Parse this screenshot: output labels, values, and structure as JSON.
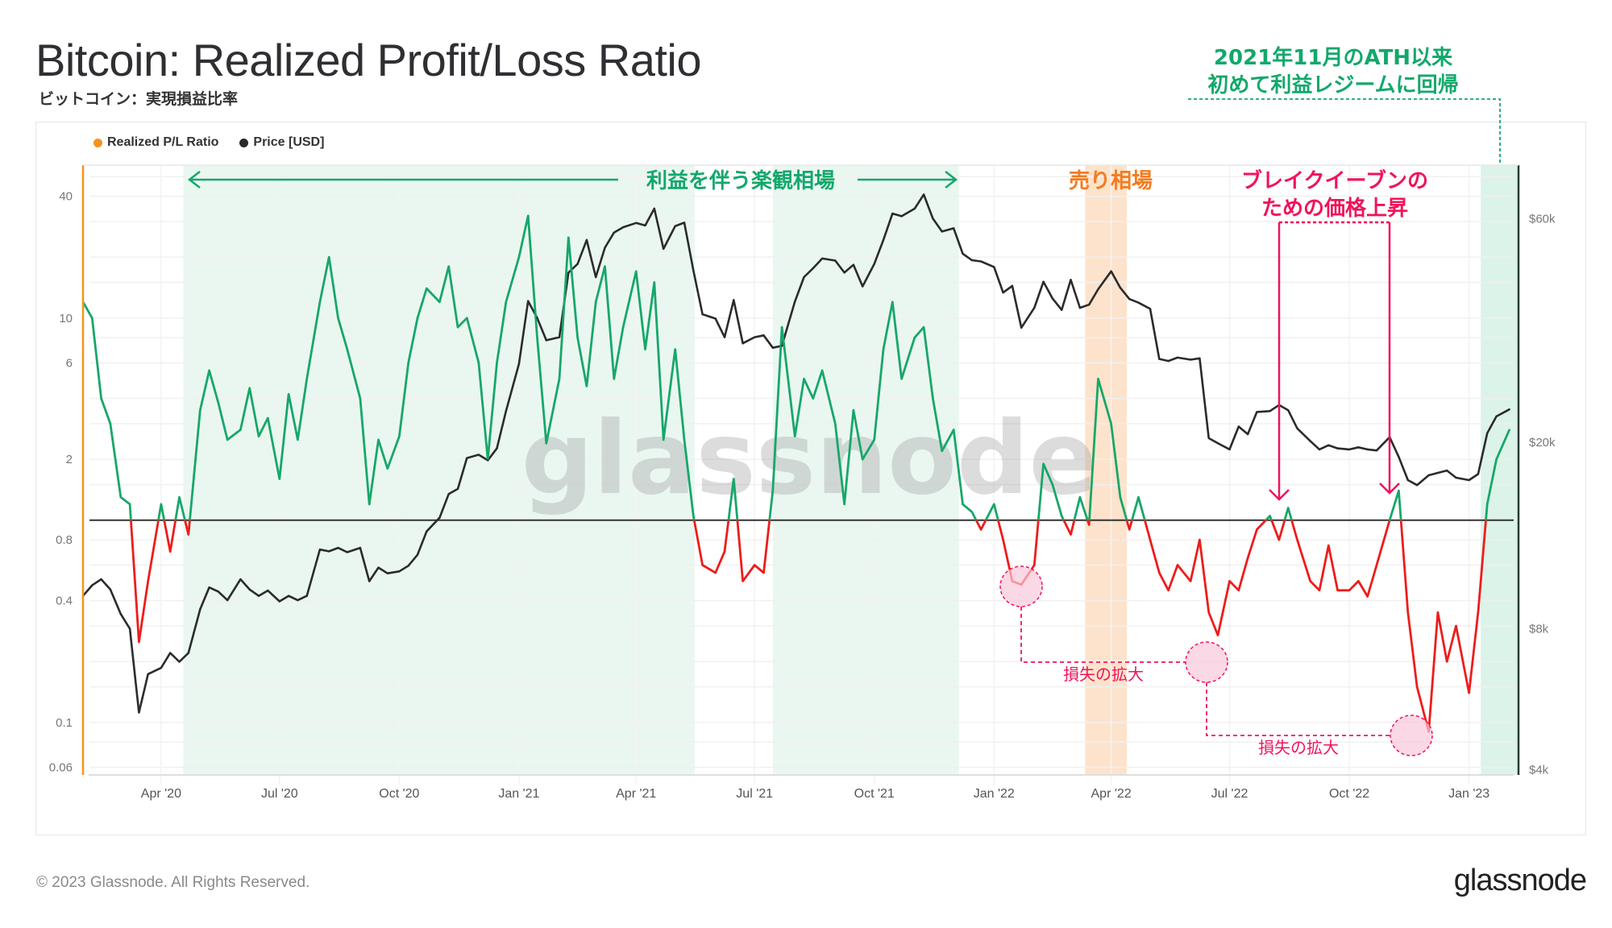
{
  "header": {
    "title": "Bitcoin: Realized Profit/Loss Ratio",
    "subtitle": "ビットコイン：実現損益比率"
  },
  "legend": [
    {
      "label": "Realized P/L Ratio",
      "color": "#f7931a"
    },
    {
      "label": "Price [USD]",
      "color": "#2b2b2b"
    }
  ],
  "footer": {
    "copyright": "© 2023 Glassnode. All Rights Reserved.",
    "logo": "glassnode"
  },
  "watermark": "glassnode",
  "annotations": {
    "optimism": "利益を伴う楽観相場",
    "selling": "売り相場",
    "breakeven_line1": "ブレイクイーブンの",
    "breakeven_line2": "ための価格上昇",
    "loss_expansion_1": "損失の拡大",
    "loss_expansion_2": "損失の拡大",
    "return_line1": "2021年11月のATH以来",
    "return_line2": "初めて利益レジームに回帰"
  },
  "colors": {
    "profit": "#17a769",
    "loss": "#ee1c1c",
    "price": "#2b2b2b",
    "accent_green": "#12a86b",
    "accent_orange": "#f47b20",
    "accent_pink": "#f0145a"
  },
  "chart_data": {
    "type": "line",
    "title": "Bitcoin: Realized Profit/Loss Ratio",
    "xlim": [
      "2020-02-01",
      "2023-02-08"
    ],
    "x_ticks": [
      {
        "date": "2020-04-01",
        "label": "Apr '20"
      },
      {
        "date": "2020-07-01",
        "label": "Jul '20"
      },
      {
        "date": "2020-10-01",
        "label": "Oct '20"
      },
      {
        "date": "2021-01-01",
        "label": "Jan '21"
      },
      {
        "date": "2021-04-01",
        "label": "Apr '21"
      },
      {
        "date": "2021-07-01",
        "label": "Jul '21"
      },
      {
        "date": "2021-10-01",
        "label": "Oct '21"
      },
      {
        "date": "2022-01-01",
        "label": "Jan '22"
      },
      {
        "date": "2022-04-01",
        "label": "Apr '22"
      },
      {
        "date": "2022-07-01",
        "label": "Jul '22"
      },
      {
        "date": "2022-10-01",
        "label": "Oct '22"
      },
      {
        "date": "2023-01-01",
        "label": "Jan '23"
      }
    ],
    "y_left": {
      "scale": "log",
      "ylim": [
        0.055,
        57
      ],
      "ticks": [
        {
          "v": 40,
          "label": "40"
        },
        {
          "v": 10,
          "label": "10"
        },
        {
          "v": 6,
          "label": "6"
        },
        {
          "v": 2,
          "label": "2"
        },
        {
          "v": 0.8,
          "label": "0.8"
        },
        {
          "v": 0.4,
          "label": "0.4"
        },
        {
          "v": 0.1,
          "label": "0.1"
        },
        {
          "v": 0.06,
          "label": "0.06"
        }
      ]
    },
    "y_right": {
      "scale": "log",
      "ylim": [
        3900,
        78000
      ],
      "ticks": [
        {
          "v": 60000,
          "label": "$60k"
        },
        {
          "v": 20000,
          "label": "$20k"
        },
        {
          "v": 8000,
          "label": "$8k"
        },
        {
          "v": 4000,
          "label": "$4k"
        }
      ]
    },
    "reference_line": 1,
    "grid": true,
    "legend_position": "top-left",
    "regimes": [
      {
        "start": "2020-04-18",
        "end": "2021-05-16",
        "kind": "profit",
        "color": "#eaf7f1"
      },
      {
        "start": "2021-07-15",
        "end": "2021-12-05",
        "kind": "profit",
        "color": "#eaf7f1"
      },
      {
        "start": "2022-03-12",
        "end": "2022-04-13",
        "kind": "selling",
        "color": "#fde3cc"
      },
      {
        "start": "2023-01-10",
        "end": "2023-02-08",
        "kind": "profit",
        "color": "#dcf3e9"
      }
    ],
    "dates": [
      "2020-02-01",
      "2020-02-08",
      "2020-02-15",
      "2020-02-22",
      "2020-03-01",
      "2020-03-08",
      "2020-03-15",
      "2020-03-22",
      "2020-04-01",
      "2020-04-08",
      "2020-04-15",
      "2020-04-22",
      "2020-05-01",
      "2020-05-08",
      "2020-05-15",
      "2020-05-22",
      "2020-06-01",
      "2020-06-08",
      "2020-06-15",
      "2020-06-22",
      "2020-07-01",
      "2020-07-08",
      "2020-07-15",
      "2020-07-22",
      "2020-08-01",
      "2020-08-08",
      "2020-08-15",
      "2020-08-22",
      "2020-09-01",
      "2020-09-08",
      "2020-09-15",
      "2020-09-22",
      "2020-10-01",
      "2020-10-08",
      "2020-10-15",
      "2020-10-22",
      "2020-11-01",
      "2020-11-08",
      "2020-11-15",
      "2020-11-22",
      "2020-12-01",
      "2020-12-08",
      "2020-12-15",
      "2020-12-22",
      "2021-01-01",
      "2021-01-08",
      "2021-01-15",
      "2021-01-22",
      "2021-02-01",
      "2021-02-08",
      "2021-02-15",
      "2021-02-22",
      "2021-03-01",
      "2021-03-08",
      "2021-03-15",
      "2021-03-22",
      "2021-04-01",
      "2021-04-08",
      "2021-04-15",
      "2021-04-22",
      "2021-05-01",
      "2021-05-08",
      "2021-05-15",
      "2021-05-22",
      "2021-06-01",
      "2021-06-08",
      "2021-06-15",
      "2021-06-22",
      "2021-07-01",
      "2021-07-08",
      "2021-07-15",
      "2021-07-22",
      "2021-08-01",
      "2021-08-08",
      "2021-08-15",
      "2021-08-22",
      "2021-09-01",
      "2021-09-08",
      "2021-09-15",
      "2021-09-22",
      "2021-10-01",
      "2021-10-08",
      "2021-10-15",
      "2021-10-22",
      "2021-11-01",
      "2021-11-08",
      "2021-11-15",
      "2021-11-22",
      "2021-12-01",
      "2021-12-08",
      "2021-12-15",
      "2021-12-22",
      "2022-01-01",
      "2022-01-08",
      "2022-01-15",
      "2022-01-22",
      "2022-02-01",
      "2022-02-08",
      "2022-02-15",
      "2022-02-22",
      "2022-03-01",
      "2022-03-08",
      "2022-03-15",
      "2022-03-22",
      "2022-04-01",
      "2022-04-08",
      "2022-04-15",
      "2022-04-22",
      "2022-05-01",
      "2022-05-08",
      "2022-05-15",
      "2022-05-22",
      "2022-06-01",
      "2022-06-08",
      "2022-06-15",
      "2022-06-22",
      "2022-07-01",
      "2022-07-08",
      "2022-07-15",
      "2022-07-22",
      "2022-08-01",
      "2022-08-08",
      "2022-08-15",
      "2022-08-22",
      "2022-09-01",
      "2022-09-08",
      "2022-09-15",
      "2022-09-22",
      "2022-10-01",
      "2022-10-08",
      "2022-10-15",
      "2022-10-22",
      "2022-11-01",
      "2022-11-08",
      "2022-11-15",
      "2022-11-22",
      "2022-12-01",
      "2022-12-08",
      "2022-12-15",
      "2022-12-22",
      "2023-01-01",
      "2023-01-08",
      "2023-01-15",
      "2023-01-22",
      "2023-02-01"
    ],
    "series": [
      {
        "name": "Realized P/L Ratio",
        "axis": "left",
        "values": [
          12,
          10,
          4,
          3,
          1.3,
          1.2,
          0.25,
          0.5,
          1.2,
          0.7,
          1.3,
          0.85,
          3.5,
          5.5,
          3.8,
          2.5,
          2.8,
          4.5,
          2.6,
          3.2,
          1.6,
          4.2,
          2.5,
          5,
          12,
          20,
          10,
          7,
          4,
          1.2,
          2.5,
          1.8,
          2.6,
          6,
          10,
          14,
          12,
          18,
          9,
          10,
          6,
          2,
          6,
          12,
          20,
          32,
          8,
          2.4,
          5,
          25,
          8,
          4.6,
          12,
          18,
          5,
          9,
          17,
          7,
          15,
          2.5,
          7,
          2.5,
          1.05,
          0.6,
          0.55,
          0.7,
          1.6,
          0.5,
          0.6,
          0.55,
          1.4,
          9,
          2.6,
          5,
          4,
          5.5,
          3,
          1.2,
          3.5,
          2,
          2.5,
          7,
          12,
          5,
          8,
          9,
          4,
          2.2,
          2.8,
          1.2,
          1.1,
          0.9,
          1.2,
          0.8,
          0.5,
          0.48,
          0.6,
          1.9,
          1.5,
          1.05,
          0.85,
          1.3,
          0.95,
          5,
          3,
          1.3,
          0.9,
          1.3,
          0.8,
          0.55,
          0.45,
          0.6,
          0.5,
          0.8,
          0.35,
          0.27,
          0.5,
          0.45,
          0.65,
          0.9,
          1.05,
          0.8,
          1.15,
          0.8,
          0.5,
          0.45,
          0.75,
          0.45,
          0.45,
          0.5,
          0.42,
          0.6,
          1.0,
          1.4,
          0.35,
          0.15,
          0.09,
          0.35,
          0.2,
          0.3,
          0.14,
          0.35,
          1.2,
          2.0,
          2.8
        ]
      },
      {
        "name": "Price [USD]",
        "axis": "right",
        "values": [
          9400,
          9900,
          10200,
          9700,
          8600,
          8000,
          5300,
          6400,
          6600,
          7100,
          6800,
          7100,
          8800,
          9800,
          9600,
          9200,
          10200,
          9700,
          9400,
          9650,
          9150,
          9400,
          9200,
          9400,
          11800,
          11700,
          11900,
          11650,
          11900,
          10100,
          10800,
          10500,
          10600,
          10900,
          11500,
          12900,
          13800,
          15500,
          15900,
          18500,
          18800,
          18300,
          19400,
          23300,
          29400,
          40000,
          36800,
          33000,
          33500,
          46000,
          48000,
          54000,
          45000,
          52000,
          56000,
          57500,
          58700,
          58000,
          63000,
          51700,
          57800,
          58800,
          46500,
          37500,
          36700,
          33500,
          40200,
          32500,
          33500,
          33800,
          31800,
          32100,
          39900,
          45000,
          47000,
          49300,
          48800,
          46000,
          47800,
          43000,
          48000,
          54000,
          61500,
          60700,
          63000,
          67500,
          60000,
          56300,
          57200,
          50500,
          48900,
          48600,
          47300,
          41700,
          43100,
          35100,
          38700,
          44000,
          40500,
          38300,
          44400,
          38700,
          39300,
          42400,
          46300,
          42700,
          40400,
          39700,
          38500,
          30100,
          29800,
          30300,
          30000,
          30200,
          20400,
          19900,
          19300,
          21600,
          20800,
          23200,
          23300,
          24000,
          23400,
          21400,
          20100,
          19300,
          19700,
          19400,
          19300,
          19500,
          19300,
          19200,
          20500,
          18600,
          16600,
          16200,
          17000,
          17200,
          17400,
          16800,
          16600,
          17100,
          20900,
          22700,
          23500
        ]
      }
    ]
  }
}
